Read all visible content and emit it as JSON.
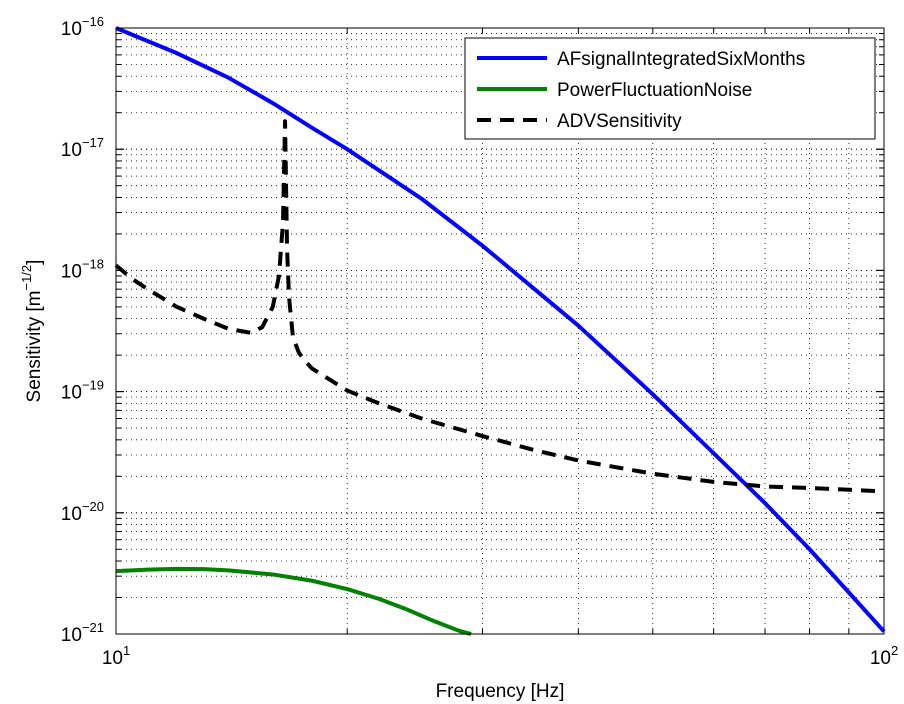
{
  "chart_data": {
    "type": "line",
    "title": "",
    "xlabel": "Frequency [Hz]",
    "ylabel_base": "Sensitivity [m",
    "ylabel_exp": "−1/2",
    "ylabel_end": "]",
    "xscale": "log",
    "yscale": "log",
    "xlim": [
      10,
      100
    ],
    "ylim": [
      1e-21,
      1e-16
    ],
    "grid": true,
    "legend_position": "top-right",
    "xticks": [
      {
        "value": 10,
        "base": "10",
        "exp": "1"
      },
      {
        "value": 100,
        "base": "10",
        "exp": "2"
      }
    ],
    "yticks": [
      {
        "value": 1e-16,
        "base": "10",
        "exp": "−16"
      },
      {
        "value": 1e-17,
        "base": "10",
        "exp": "−17"
      },
      {
        "value": 1e-18,
        "base": "10",
        "exp": "−18"
      },
      {
        "value": 1e-19,
        "base": "10",
        "exp": "−19"
      },
      {
        "value": 1e-20,
        "base": "10",
        "exp": "−20"
      },
      {
        "value": 1e-21,
        "base": "10",
        "exp": "−21"
      }
    ],
    "series": [
      {
        "name": "AFsignalIntegratedSixMonths",
        "color": "#0000ff",
        "style": "solid",
        "x": [
          10,
          12,
          14,
          16,
          18,
          20,
          25,
          30,
          40,
          50,
          60,
          70,
          80,
          90,
          100
        ],
        "y": [
          1e-16,
          6.2e-17,
          3.9e-17,
          2.4e-17,
          1.5e-17,
          1e-17,
          3.9e-18,
          1.6e-18,
          3.5e-19,
          9.5e-20,
          3.1e-20,
          1.2e-20,
          5e-21,
          2.2e-21,
          1.05e-21
        ]
      },
      {
        "name": "PowerFluctuationNoise",
        "color": "#008000",
        "style": "solid",
        "x": [
          10,
          11,
          12,
          13,
          14,
          16,
          18,
          20,
          22,
          24,
          26,
          28,
          29
        ],
        "y": [
          3.3e-21,
          3.4e-21,
          3.45e-21,
          3.43e-21,
          3.35e-21,
          3.1e-21,
          2.75e-21,
          2.35e-21,
          1.95e-21,
          1.58e-21,
          1.27e-21,
          1.06e-21,
          1e-21
        ]
      },
      {
        "name": "ADVSensitivity",
        "color": "#000000",
        "style": "dashed",
        "x": [
          10,
          10.5,
          11,
          12,
          13,
          14,
          15,
          15.5,
          16,
          16.3,
          16.5,
          16.6,
          16.7,
          16.8,
          17,
          17.3,
          17.6,
          18,
          19,
          20,
          22,
          25,
          30,
          35,
          40,
          50,
          60,
          70,
          80,
          90,
          100
        ],
        "y": [
          1.1e-18,
          8.5e-19,
          7e-19,
          5e-19,
          4e-19,
          3.3e-19,
          3.05e-19,
          3.4e-19,
          5e-19,
          9e-19,
          2.5e-18,
          1.7e-17,
          1.5e-18,
          6e-19,
          2.8e-19,
          2.1e-19,
          1.8e-19,
          1.55e-19,
          1.25e-19,
          1.02e-19,
          8e-20,
          6e-20,
          4.3e-20,
          3.3e-20,
          2.7e-20,
          2.1e-20,
          1.8e-20,
          1.65e-20,
          1.6e-20,
          1.55e-20,
          1.5e-20
        ]
      }
    ]
  }
}
